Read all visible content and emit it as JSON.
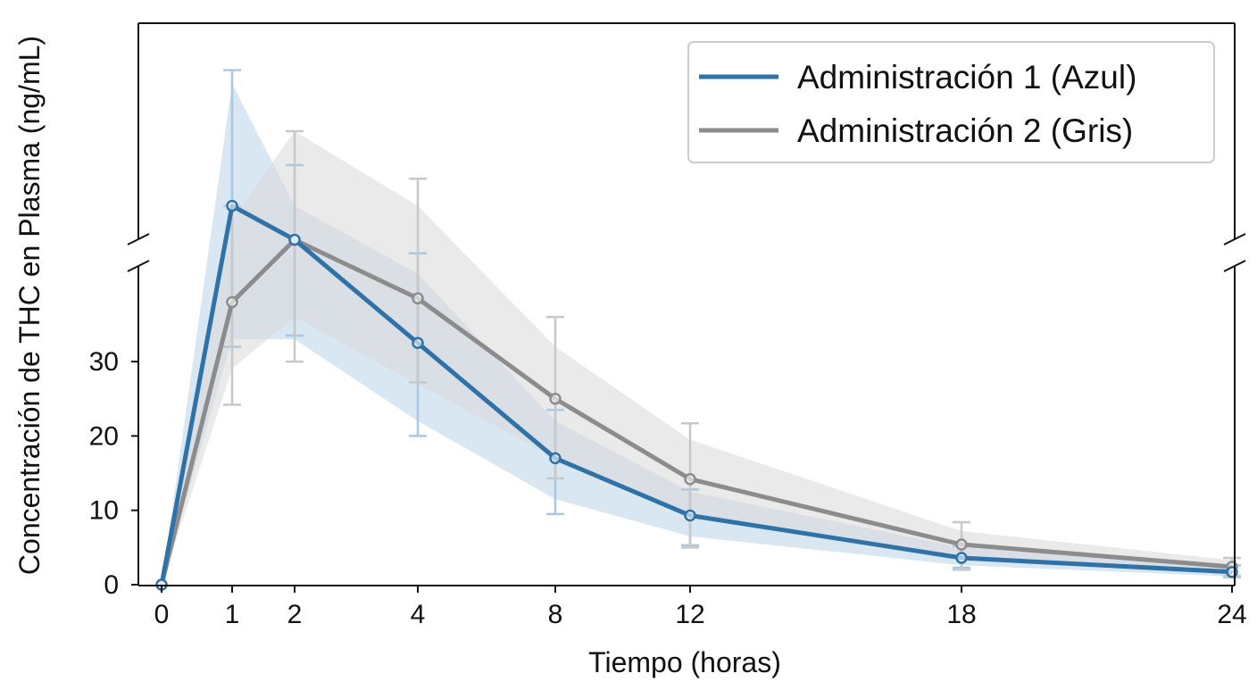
{
  "chart_data": {
    "type": "line",
    "xlabel": "Tiempo (horas)",
    "ylabel": "Concentración de THC en Plasma (ng/mL)",
    "x_ticks": [
      "0",
      "1",
      "2",
      "4",
      "8",
      "12",
      "18",
      "24"
    ],
    "x_tick_values": [
      0,
      1,
      2,
      4,
      8,
      12,
      18,
      24
    ],
    "y_ticks": [
      "0",
      "10",
      "20",
      "30"
    ],
    "y_tick_values": [
      0,
      10,
      20,
      30
    ],
    "ylim_lower": [
      0,
      40
    ],
    "broken_y_axis": true,
    "grid": false,
    "legend_position": "top-right",
    "series": [
      {
        "name": "Administración 1 (Azul)",
        "color": "#2f72a8",
        "band_color": "#b9d3e8",
        "x": [
          0,
          1,
          2,
          4,
          8,
          12,
          18,
          24
        ],
        "y": [
          0,
          52,
          47,
          32.5,
          17,
          9.3,
          3.6,
          1.7
        ],
        "err_lower": [
          0,
          32,
          33.5,
          20,
          9.5,
          5.3,
          2.3,
          1.0
        ],
        "err_upper": [
          0,
          72,
          58,
          45,
          23.5,
          12.8,
          5.2,
          2.6
        ],
        "band_lower": [
          0,
          33,
          33,
          22,
          11.5,
          6.5,
          2.6,
          1.1
        ],
        "band_upper": [
          0,
          70,
          52,
          42,
          22,
          12.5,
          5.0,
          2.4
        ]
      },
      {
        "name": "Administración 2 (Gris)",
        "color": "#8c8c8c",
        "band_color": "#d9d9d9",
        "x": [
          0,
          1,
          2,
          4,
          8,
          12,
          18,
          24
        ],
        "y": [
          0,
          38,
          47,
          38.5,
          25,
          14.2,
          5.4,
          2.4
        ],
        "err_lower": [
          0,
          24.2,
          30,
          27.2,
          14.3,
          5.0,
          2.0,
          1.2
        ],
        "err_upper": [
          0,
          52,
          63,
          56,
          36,
          21.7,
          8.4,
          3.6
        ],
        "band_lower": [
          0,
          29,
          36,
          27,
          17,
          9.5,
          3.5,
          1.5
        ],
        "band_upper": [
          0,
          50,
          63,
          52,
          32,
          19.5,
          7.2,
          3.3
        ]
      }
    ]
  }
}
